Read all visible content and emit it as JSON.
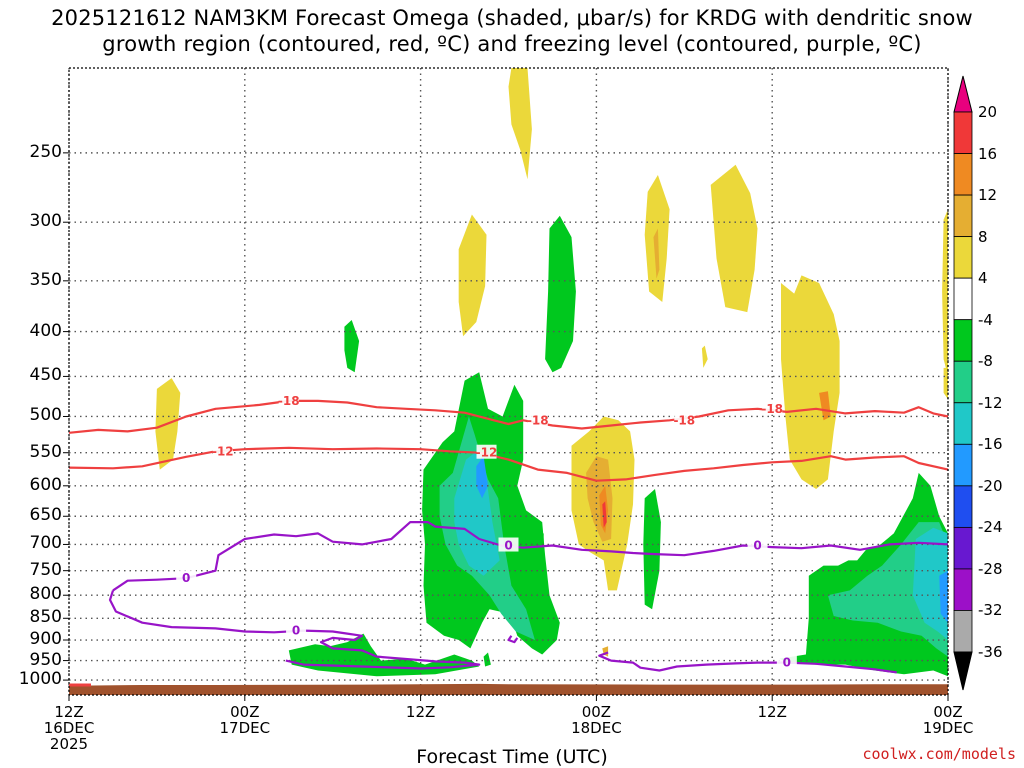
{
  "title": {
    "line1": "2025121612 NAM3KM Forecast Omega (shaded, μbar/s) for KRDG with dendritic snow",
    "line2": "growth region (contoured, red, ºC) and freezing level (contoured, purple, ºC)"
  },
  "xlabel": "Forecast Time (UTC)",
  "credit": "coolwx.com/models",
  "chart_data": {
    "type": "heatmap",
    "y_axis": {
      "label": "",
      "ticks": [
        "250",
        "300",
        "350",
        "400",
        "450",
        "500",
        "550",
        "600",
        "650",
        "700",
        "750",
        "800",
        "850",
        "900",
        "950",
        "1000"
      ],
      "scale": "log (pressure, hPa)",
      "inverted": true,
      "range": [
        200,
        1040
      ]
    },
    "x_axis": {
      "label": "Forecast Time (UTC)",
      "ticks": [
        {
          "line1": "12Z",
          "line2": "16DEC",
          "line3": "2025"
        },
        {
          "line1": "00Z",
          "line2": "17DEC",
          "line3": ""
        },
        {
          "line1": "12Z",
          "line2": "",
          "line3": ""
        },
        {
          "line1": "00Z",
          "line2": "18DEC",
          "line3": ""
        },
        {
          "line1": "12Z",
          "line2": "",
          "line3": ""
        },
        {
          "line1": "00Z",
          "line2": "19DEC",
          "line3": ""
        }
      ],
      "range_hours": [
        0,
        60
      ]
    },
    "grid": true,
    "colorbar": {
      "unit": "μbar/s",
      "labels": [
        "20",
        "16",
        "12",
        "8",
        "4",
        "-4",
        "-8",
        "-12",
        "-16",
        "-20",
        "-24",
        "-28",
        "-32",
        "-36"
      ],
      "colors": [
        "#e8007e",
        "#f03838",
        "#ef8a22",
        "#e5ae32",
        "#ebd83a",
        "#ffffff",
        "#00c81e",
        "#22ce88",
        "#20c8c8",
        "#229aff",
        "#1f4ef0",
        "#6818d0",
        "#9c10c8",
        "#aaaaaa",
        "#000000"
      ]
    },
    "contours": [
      {
        "level": "-18",
        "color": "#ef4040",
        "label_x": [
          15,
          32,
          42,
          48
        ]
      },
      {
        "level": "-12",
        "color": "#ef4040",
        "label_x": [
          10.5,
          28.5
        ]
      },
      {
        "level": "0",
        "color": "#9814c8",
        "label_x": [
          8,
          15.5,
          30,
          47,
          49
        ]
      }
    ],
    "terrain_color": "#a0522d"
  }
}
